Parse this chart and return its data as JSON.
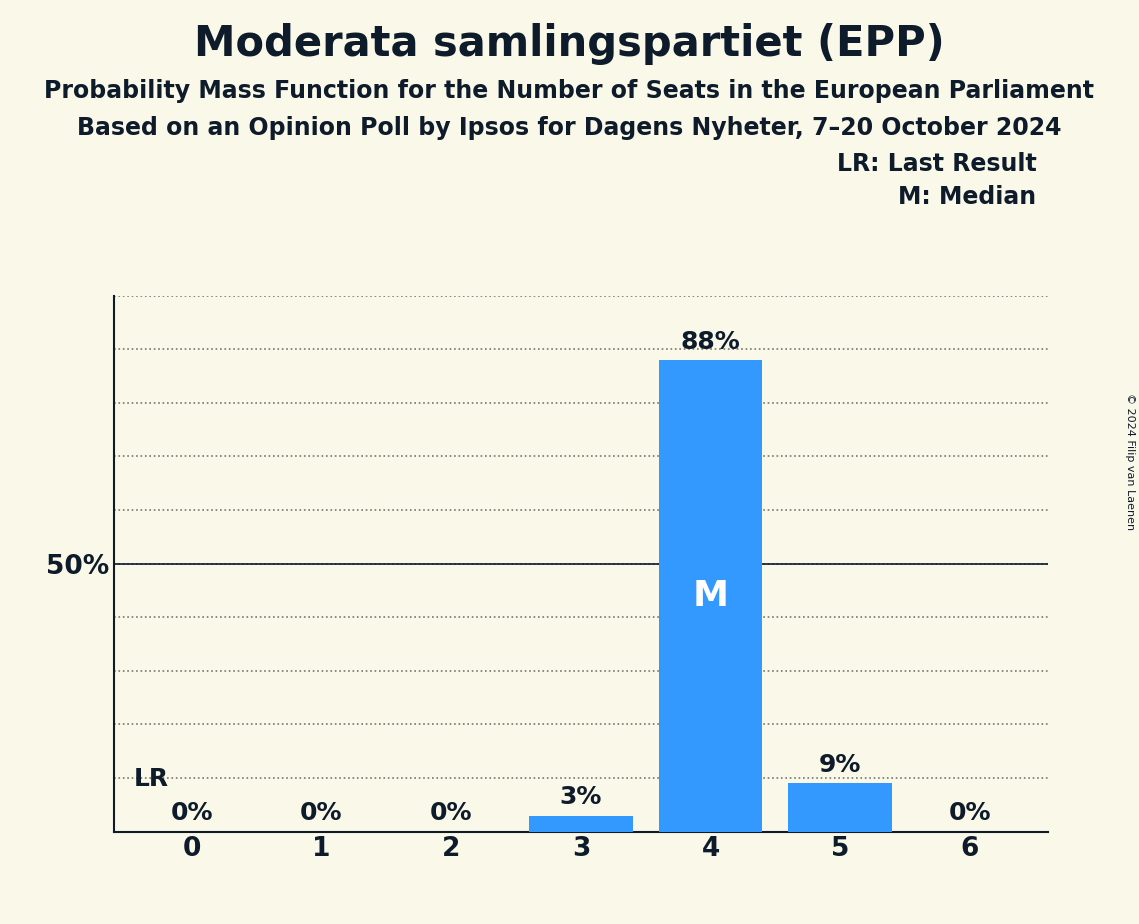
{
  "title": "Moderata samlingspartiet (EPP)",
  "subtitle1": "Probability Mass Function for the Number of Seats in the European Parliament",
  "subtitle2": "Based on an Opinion Poll by Ipsos for Dagens Nyheter, 7–20 October 2024",
  "copyright": "© 2024 Filip van Laenen",
  "categories": [
    0,
    1,
    2,
    3,
    4,
    5,
    6
  ],
  "values": [
    0.0,
    0.0,
    0.0,
    0.03,
    0.88,
    0.09,
    0.0
  ],
  "bar_color": "#3399ff",
  "bar_labels": [
    "0%",
    "0%",
    "0%",
    "3%",
    "88%",
    "9%",
    "0%"
  ],
  "median_seat": 4,
  "last_result_seat": 0,
  "median_label": "M",
  "lr_label": "LR",
  "legend_lr": "LR: Last Result",
  "legend_m": "M: Median",
  "background_color": "#faf8e8",
  "text_color": "#0d1b2a",
  "ylim": [
    0,
    1.0
  ],
  "yticks": [
    0.0,
    0.1,
    0.2,
    0.3,
    0.4,
    0.5,
    0.6,
    0.7,
    0.8,
    0.9,
    1.0
  ],
  "grid_color": "#222222",
  "title_fontsize": 30,
  "subtitle_fontsize": 17,
  "bar_label_fontsize": 18,
  "axis_tick_fontsize": 19,
  "median_fontsize": 26,
  "lr_fontsize": 18,
  "legend_fontsize": 17,
  "copyright_fontsize": 8
}
